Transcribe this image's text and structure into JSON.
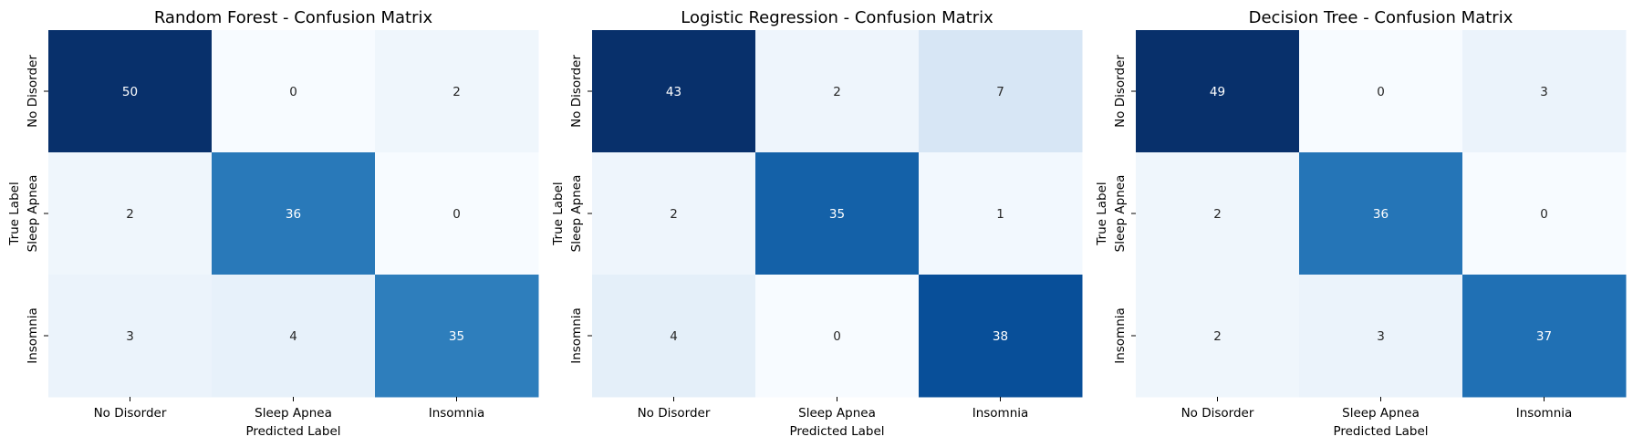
{
  "chart_data": [
    {
      "type": "heatmap",
      "title": "Random Forest - Confusion Matrix",
      "xlabel": "Predicted Label",
      "ylabel": "True Label",
      "x_categories": [
        "No Disorder",
        "Sleep Apnea",
        "Insomnia"
      ],
      "y_categories": [
        "No Disorder",
        "Sleep Apnea",
        "Insomnia"
      ],
      "values": [
        [
          50,
          0,
          2
        ],
        [
          2,
          36,
          0
        ],
        [
          3,
          4,
          35
        ]
      ],
      "colormap": "Blues",
      "colorbar": false
    },
    {
      "type": "heatmap",
      "title": "Logistic Regression - Confusion Matrix",
      "xlabel": "Predicted Label",
      "ylabel": "True Label",
      "x_categories": [
        "No Disorder",
        "Sleep Apnea",
        "Insomnia"
      ],
      "y_categories": [
        "No Disorder",
        "Sleep Apnea",
        "Insomnia"
      ],
      "values": [
        [
          43,
          2,
          7
        ],
        [
          2,
          35,
          1
        ],
        [
          4,
          0,
          38
        ]
      ],
      "colormap": "Blues",
      "colorbar": false
    },
    {
      "type": "heatmap",
      "title": "Decision Tree - Confusion Matrix",
      "xlabel": "Predicted Label",
      "ylabel": "True Label",
      "x_categories": [
        "No Disorder",
        "Sleep Apnea",
        "Insomnia"
      ],
      "y_categories": [
        "No Disorder",
        "Sleep Apnea",
        "Insomnia"
      ],
      "values": [
        [
          49,
          0,
          3
        ],
        [
          2,
          36,
          0
        ],
        [
          2,
          3,
          37
        ]
      ],
      "colormap": "Blues",
      "colorbar": false
    }
  ]
}
